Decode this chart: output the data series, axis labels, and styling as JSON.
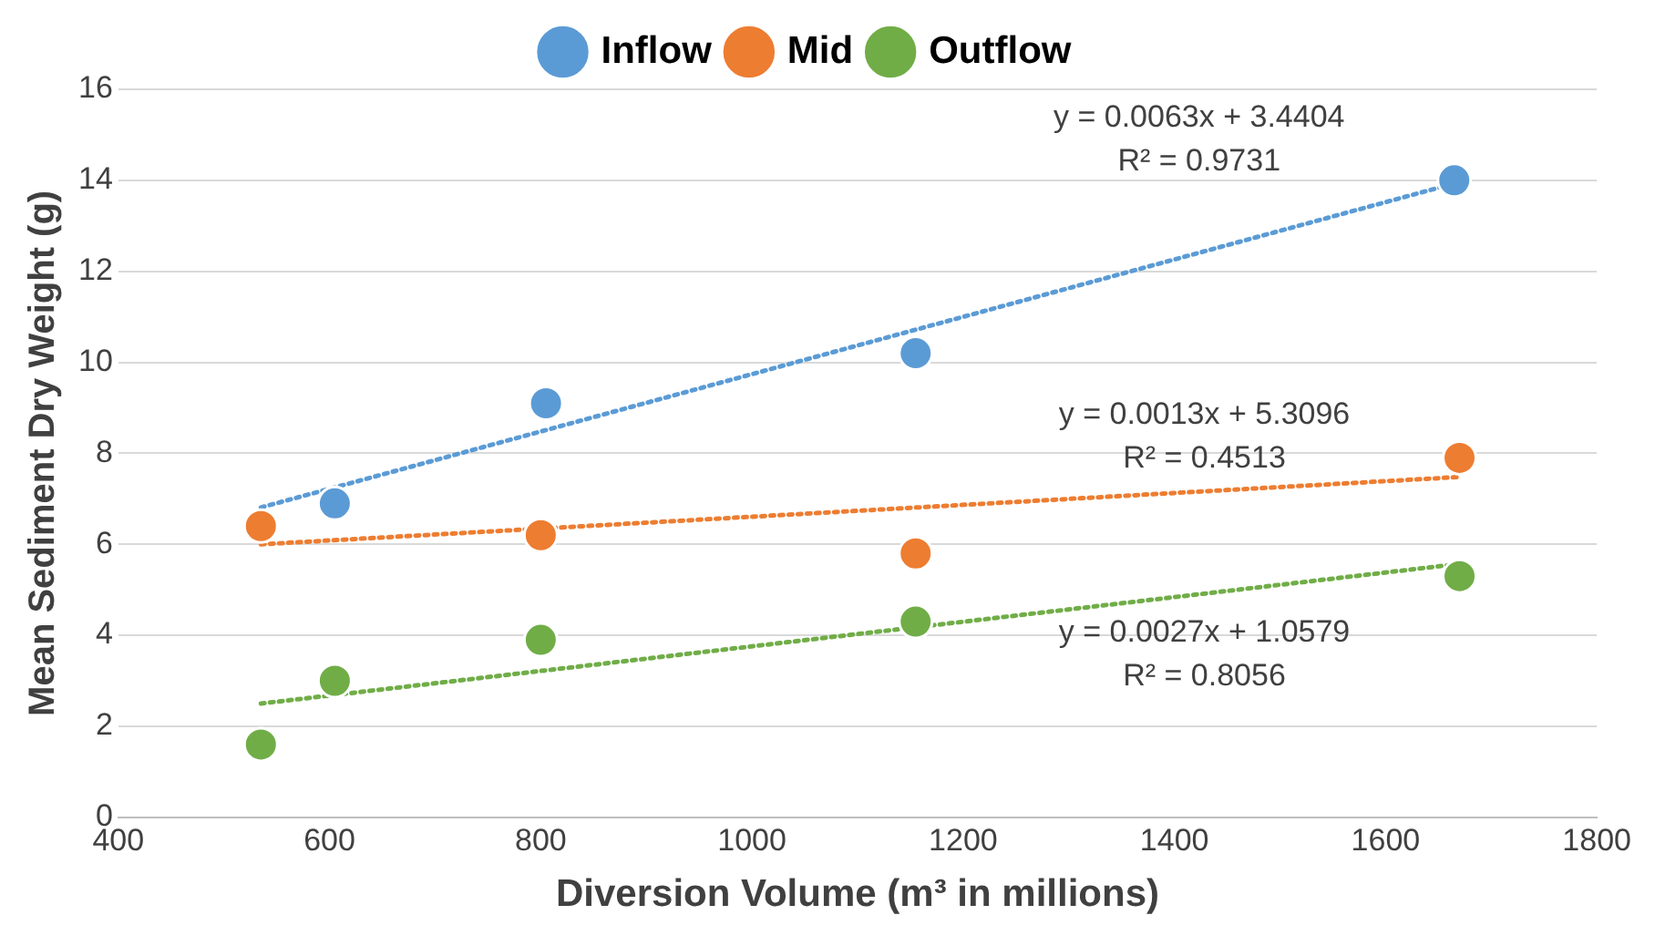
{
  "chart_data": {
    "type": "scatter",
    "xlabel": "Diversion Volume (m³ in millions)",
    "ylabel": "Mean Sediment Dry Weight (g)",
    "xlim": [
      400,
      1800
    ],
    "xticks": [
      400,
      600,
      800,
      1000,
      1200,
      1400,
      1600,
      1800
    ],
    "ylim": [
      0,
      16
    ],
    "yticks": [
      0,
      2,
      4,
      6,
      8,
      10,
      12,
      14,
      16
    ],
    "grid": "y",
    "legend": "top",
    "marker": "circle",
    "series": [
      {
        "name": "Inflow",
        "color": "#5b9bd5",
        "x": [
          605,
          805,
          1155,
          1665
        ],
        "values": [
          6.9,
          9.1,
          10.2,
          14.0
        ]
      },
      {
        "name": "Mid",
        "color": "#ed7d31",
        "x": [
          535,
          800,
          1155,
          1670
        ],
        "values": [
          6.4,
          6.2,
          5.8,
          7.9
        ]
      },
      {
        "name": "Outflow",
        "color": "#70ad47",
        "x": [
          535,
          605,
          800,
          1155,
          1670
        ],
        "values": [
          1.6,
          3.0,
          3.9,
          4.3,
          5.3
        ]
      },
      {
        "type": "line",
        "color": "#5b9bd5",
        "line_style": "dotted",
        "marker": "none",
        "x": [
          535,
          1665
        ],
        "values": [
          6.81,
          13.93
        ]
      },
      {
        "type": "line",
        "color": "#ed7d31",
        "line_style": "dotted",
        "marker": "none",
        "x": [
          535,
          1670
        ],
        "values": [
          6.0,
          7.48
        ]
      },
      {
        "type": "line",
        "color": "#70ad47",
        "line_style": "dotted",
        "marker": "none",
        "x": [
          535,
          1670
        ],
        "values": [
          2.5,
          5.57
        ]
      }
    ],
    "annotations": [
      "y = 0.0063x + 3.4404",
      "R² = 0.9731",
      "y = 0.0013x + 5.3096",
      "R² = 0.4513",
      "y = 0.0027x + 1.0579",
      "R² = 0.8056"
    ]
  }
}
